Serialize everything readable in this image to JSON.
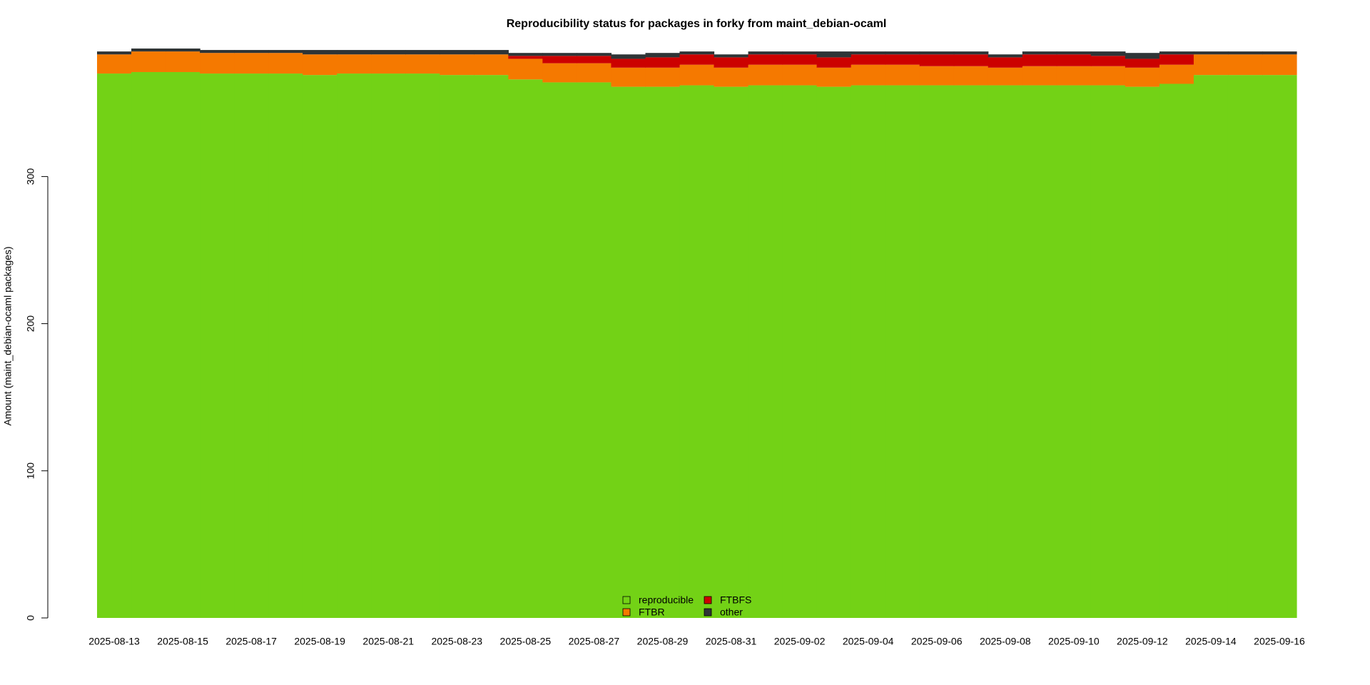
{
  "chart_data": {
    "type": "stacked-step-area",
    "title": "Reproducibility status for packages in forky from maint_debian-ocaml",
    "y_label": "Amount (maint_debian-ocaml packages)",
    "categories": [
      "2025-08-13",
      null,
      "2025-08-15",
      null,
      "2025-08-17",
      null,
      "2025-08-19",
      null,
      "2025-08-21",
      null,
      "2025-08-23",
      null,
      "2025-08-25",
      null,
      "2025-08-27",
      null,
      "2025-08-29",
      null,
      "2025-08-31",
      null,
      "2025-09-02",
      null,
      "2025-09-04",
      null,
      "2025-09-06",
      null,
      "2025-09-08",
      null,
      "2025-09-10",
      null,
      "2025-09-12",
      null,
      "2025-09-14",
      null,
      "2025-09-16"
    ],
    "series": [
      {
        "name": "reproducible",
        "color": "#73d216",
        "values": [
          370,
          371,
          371,
          370,
          370,
          370,
          369,
          370,
          370,
          370,
          369,
          369,
          366,
          364,
          364,
          361,
          361,
          362,
          361,
          362,
          362,
          361,
          362,
          362,
          362,
          362,
          362,
          362,
          362,
          362,
          361,
          363,
          369,
          369,
          369
        ]
      },
      {
        "name": "FTBR",
        "color": "#f57900",
        "values": [
          13,
          14,
          14,
          14,
          14,
          14,
          14,
          13,
          13,
          13,
          14,
          14,
          14,
          13,
          13,
          13,
          13,
          14,
          13,
          14,
          14,
          13,
          14,
          14,
          13,
          13,
          12,
          13,
          13,
          13,
          13,
          13,
          14,
          14,
          14
        ]
      },
      {
        "name": "FTBFS",
        "color": "#cc0000",
        "values": [
          0,
          0,
          0,
          0,
          0,
          0,
          0,
          0,
          0,
          0,
          0,
          0,
          2,
          5,
          5,
          6,
          7,
          7,
          7,
          7,
          7,
          7,
          7,
          7,
          8,
          8,
          7,
          8,
          8,
          7,
          6,
          7,
          0,
          0,
          0
        ]
      },
      {
        "name": "other",
        "color": "#2e3436",
        "values": [
          2,
          2,
          2,
          2,
          2,
          2,
          3,
          3,
          3,
          3,
          3,
          3,
          2,
          2,
          2,
          3,
          3,
          2,
          2,
          2,
          2,
          4,
          2,
          2,
          2,
          2,
          2,
          2,
          2,
          3,
          4,
          2,
          2,
          2,
          2
        ]
      }
    ],
    "ylim": [
      0,
      387
    ],
    "yticks": [
      0,
      100,
      200,
      300
    ],
    "legend": "bottom"
  }
}
